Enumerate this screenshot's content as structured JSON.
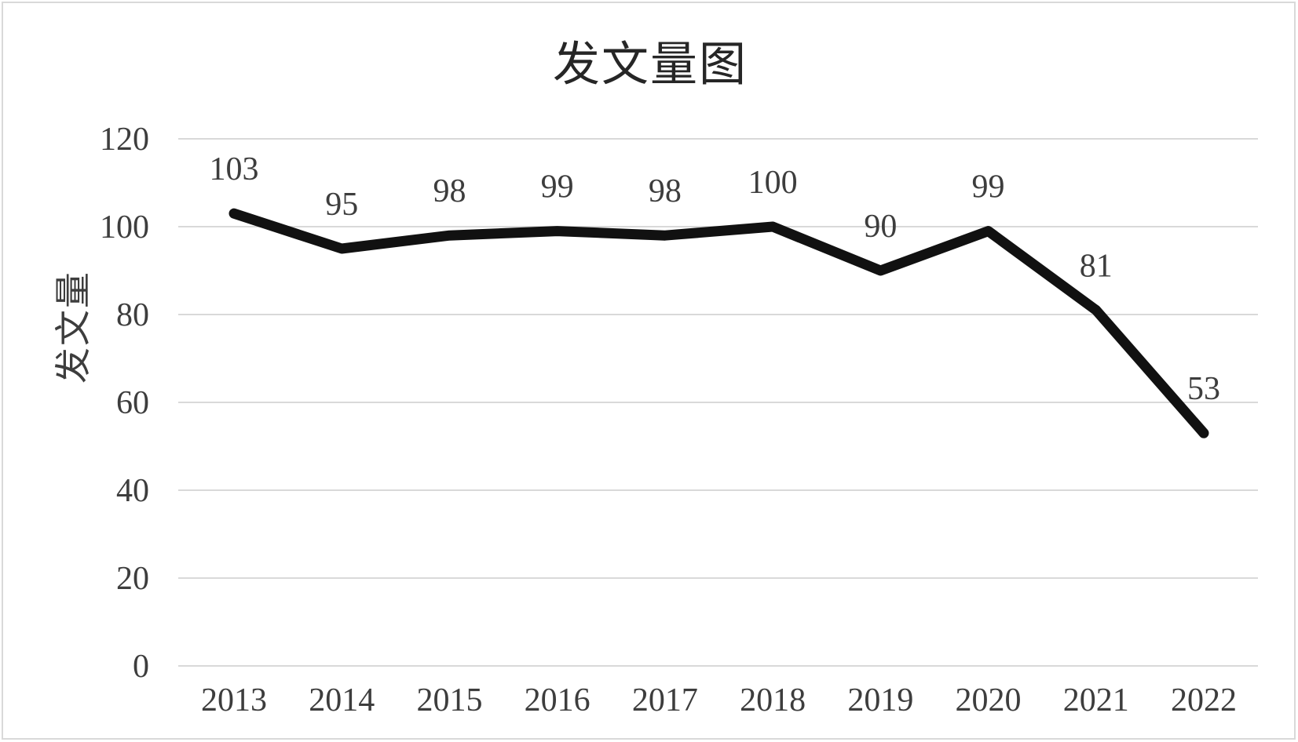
{
  "chart_data": {
    "type": "line",
    "title": "发文量图",
    "xlabel": "",
    "ylabel": "发文量",
    "categories": [
      "2013",
      "2014",
      "2015",
      "2016",
      "2017",
      "2018",
      "2019",
      "2020",
      "2021",
      "2022"
    ],
    "series": [
      {
        "name": "发文量",
        "values": [
          103,
          95,
          98,
          99,
          98,
          100,
          90,
          99,
          81,
          53
        ]
      }
    ],
    "data_labels": [
      103,
      95,
      98,
      99,
      98,
      100,
      90,
      99,
      81,
      53
    ],
    "data_label_position": "above",
    "ylim": [
      0,
      120
    ],
    "yticks": [
      0,
      20,
      40,
      60,
      80,
      100,
      120
    ],
    "grid": "horizontal",
    "legend_position": "none",
    "colors": {
      "line": "#111111",
      "grid": "#d9d9d9",
      "text": "#3d3d3d",
      "title": "#262626",
      "border": "#d9d9d9",
      "background": "#ffffff"
    }
  }
}
